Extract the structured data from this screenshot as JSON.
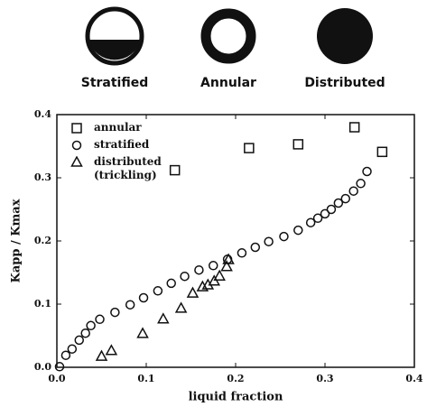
{
  "icons": [
    {
      "label": "Stratified"
    },
    {
      "label": "Annular"
    },
    {
      "label": "Distributed"
    }
  ],
  "chart_data": {
    "type": "scatter",
    "xlabel": "liquid fraction",
    "ylabel": "Kapp / Kmax",
    "xlim": [
      0,
      0.4
    ],
    "ylim": [
      0,
      0.4
    ],
    "xticks": [
      {
        "value": 0,
        "label": "0.0"
      },
      {
        "value": 0.1,
        "label": "0.1"
      },
      {
        "value": 0.2,
        "label": "0.2"
      },
      {
        "value": 0.3,
        "label": "0.3"
      },
      {
        "value": 0.4,
        "label": "0.4"
      }
    ],
    "yticks": [
      {
        "value": 0,
        "label": "0.0"
      },
      {
        "value": 0.1,
        "label": "0.1"
      },
      {
        "value": 0.2,
        "label": "0.2"
      },
      {
        "value": 0.3,
        "label": "0.3"
      },
      {
        "value": 0.4,
        "label": "0.4"
      }
    ],
    "series": [
      {
        "name": "annular",
        "marker": "square",
        "color": "#111",
        "x": [
          0.132,
          0.215,
          0.27,
          0.333,
          0.364
        ],
        "values": [
          0.312,
          0.347,
          0.353,
          0.38,
          0.341
        ]
      },
      {
        "name": "stratified",
        "marker": "circle",
        "color": "#111",
        "x": [
          0.003,
          0.01,
          0.017,
          0.025,
          0.032,
          0.038,
          0.048,
          0.065,
          0.082,
          0.097,
          0.113,
          0.128,
          0.143,
          0.159,
          0.175,
          0.191,
          0.207,
          0.222,
          0.237,
          0.254,
          0.27,
          0.284,
          0.292,
          0.3,
          0.307,
          0.315,
          0.323,
          0.332,
          0.34,
          0.347
        ],
        "values": [
          0.001,
          0.019,
          0.029,
          0.043,
          0.054,
          0.066,
          0.076,
          0.087,
          0.099,
          0.11,
          0.121,
          0.133,
          0.144,
          0.154,
          0.161,
          0.171,
          0.181,
          0.19,
          0.199,
          0.207,
          0.217,
          0.229,
          0.236,
          0.243,
          0.25,
          0.26,
          0.267,
          0.279,
          0.291,
          0.31
        ]
      },
      {
        "name": "distributed (trickling)",
        "marker": "triangle",
        "color": "#111",
        "x": [
          0.05,
          0.061,
          0.096,
          0.119,
          0.139,
          0.152,
          0.163,
          0.169,
          0.176,
          0.182,
          0.19,
          0.192
        ],
        "values": [
          0.017,
          0.026,
          0.053,
          0.076,
          0.093,
          0.117,
          0.127,
          0.13,
          0.136,
          0.144,
          0.159,
          0.17
        ]
      }
    ]
  }
}
